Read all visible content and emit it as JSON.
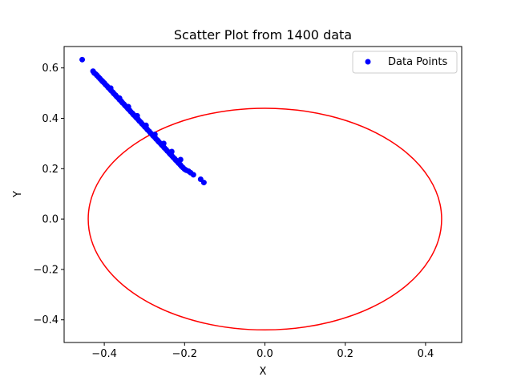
{
  "chart_data": {
    "type": "scatter",
    "title": "Scatter Plot from 1400 data",
    "xlabel": "X",
    "ylabel": "Y",
    "xlim": [
      -0.5,
      0.49
    ],
    "ylim": [
      -0.49,
      0.685
    ],
    "xticks": [
      -0.4,
      -0.2,
      0.0,
      0.2,
      0.4
    ],
    "xtick_labels": [
      "−0.4",
      "−0.2",
      "0.0",
      "0.2",
      "0.4"
    ],
    "yticks": [
      -0.4,
      -0.2,
      0.0,
      0.2,
      0.4,
      0.6
    ],
    "ytick_labels": [
      "−0.4",
      "−0.2",
      "0.0",
      "0.2",
      "0.4",
      "0.6"
    ],
    "grid": false,
    "legend": {
      "position": "top-right",
      "entries": [
        {
          "label": "Data Points",
          "color": "#0000ff"
        }
      ]
    },
    "series": [
      {
        "name": "Data Points",
        "kind": "scatter",
        "color": "#0000ff",
        "points": [
          [
            -0.455,
            0.633
          ],
          [
            -0.428,
            0.587
          ],
          [
            -0.425,
            0.58
          ],
          [
            -0.421,
            0.575
          ],
          [
            -0.418,
            0.57
          ],
          [
            -0.414,
            0.563
          ],
          [
            -0.411,
            0.558
          ],
          [
            -0.407,
            0.551
          ],
          [
            -0.404,
            0.546
          ],
          [
            -0.4,
            0.54
          ],
          [
            -0.397,
            0.534
          ],
          [
            -0.393,
            0.528
          ],
          [
            -0.39,
            0.522
          ],
          [
            -0.386,
            0.516
          ],
          [
            -0.383,
            0.51
          ],
          [
            -0.379,
            0.504
          ],
          [
            -0.376,
            0.498
          ],
          [
            -0.372,
            0.492
          ],
          [
            -0.369,
            0.486
          ],
          [
            -0.365,
            0.48
          ],
          [
            -0.362,
            0.474
          ],
          [
            -0.358,
            0.468
          ],
          [
            -0.355,
            0.462
          ],
          [
            -0.351,
            0.456
          ],
          [
            -0.348,
            0.45
          ],
          [
            -0.344,
            0.444
          ],
          [
            -0.341,
            0.438
          ],
          [
            -0.337,
            0.432
          ],
          [
            -0.334,
            0.426
          ],
          [
            -0.33,
            0.42
          ],
          [
            -0.327,
            0.414
          ],
          [
            -0.323,
            0.408
          ],
          [
            -0.32,
            0.402
          ],
          [
            -0.316,
            0.396
          ],
          [
            -0.313,
            0.39
          ],
          [
            -0.309,
            0.384
          ],
          [
            -0.306,
            0.378
          ],
          [
            -0.302,
            0.372
          ],
          [
            -0.299,
            0.366
          ],
          [
            -0.295,
            0.36
          ],
          [
            -0.292,
            0.354
          ],
          [
            -0.288,
            0.348
          ],
          [
            -0.285,
            0.342
          ],
          [
            -0.281,
            0.336
          ],
          [
            -0.278,
            0.33
          ],
          [
            -0.274,
            0.324
          ],
          [
            -0.271,
            0.318
          ],
          [
            -0.267,
            0.312
          ],
          [
            -0.264,
            0.306
          ],
          [
            -0.26,
            0.3
          ],
          [
            -0.257,
            0.294
          ],
          [
            -0.253,
            0.288
          ],
          [
            -0.25,
            0.282
          ],
          [
            -0.246,
            0.276
          ],
          [
            -0.243,
            0.27
          ],
          [
            -0.239,
            0.264
          ],
          [
            -0.236,
            0.258
          ],
          [
            -0.232,
            0.252
          ],
          [
            -0.229,
            0.246
          ],
          [
            -0.225,
            0.24
          ],
          [
            -0.222,
            0.234
          ],
          [
            -0.218,
            0.228
          ],
          [
            -0.215,
            0.222
          ],
          [
            -0.211,
            0.216
          ],
          [
            -0.208,
            0.21
          ],
          [
            -0.204,
            0.204
          ],
          [
            -0.2,
            0.198
          ],
          [
            -0.196,
            0.194
          ],
          [
            -0.19,
            0.19
          ],
          [
            -0.185,
            0.184
          ],
          [
            -0.178,
            0.176
          ],
          [
            -0.16,
            0.158
          ],
          [
            -0.152,
            0.145
          ],
          [
            -0.384,
            0.52
          ],
          [
            -0.362,
            0.48
          ],
          [
            -0.34,
            0.446
          ],
          [
            -0.318,
            0.41
          ],
          [
            -0.296,
            0.372
          ],
          [
            -0.274,
            0.336
          ],
          [
            -0.252,
            0.3
          ],
          [
            -0.232,
            0.268
          ],
          [
            -0.21,
            0.236
          ]
        ]
      },
      {
        "name": "",
        "kind": "ellipse",
        "color": "#ff0000",
        "center": [
          0.0,
          0.0
        ],
        "radius_x": 0.44,
        "radius_y": 0.44
      }
    ]
  }
}
